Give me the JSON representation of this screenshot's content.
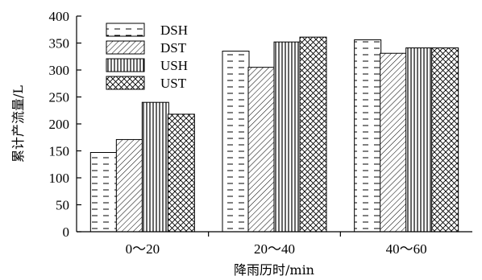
{
  "chart_data": {
    "type": "bar",
    "title": "",
    "xlabel": "降雨历时/min",
    "ylabel": "累计产流量/L",
    "categories": [
      "0～20",
      "20～40",
      "40～60"
    ],
    "series": [
      {
        "name": "DSH",
        "pattern": "dashes",
        "values": [
          147,
          335,
          356
        ]
      },
      {
        "name": "DST",
        "pattern": "diagonal",
        "values": [
          171,
          305,
          331
        ]
      },
      {
        "name": "USH",
        "pattern": "vertical",
        "values": [
          240,
          352,
          341
        ]
      },
      {
        "name": "UST",
        "pattern": "crosshatch",
        "values": [
          218,
          361,
          341
        ]
      }
    ],
    "ylim": [
      0,
      400
    ],
    "yticks": [
      "0",
      "50",
      "100",
      "150",
      "200",
      "250",
      "300",
      "350",
      "400"
    ],
    "grid": false,
    "legend": "top-left"
  }
}
